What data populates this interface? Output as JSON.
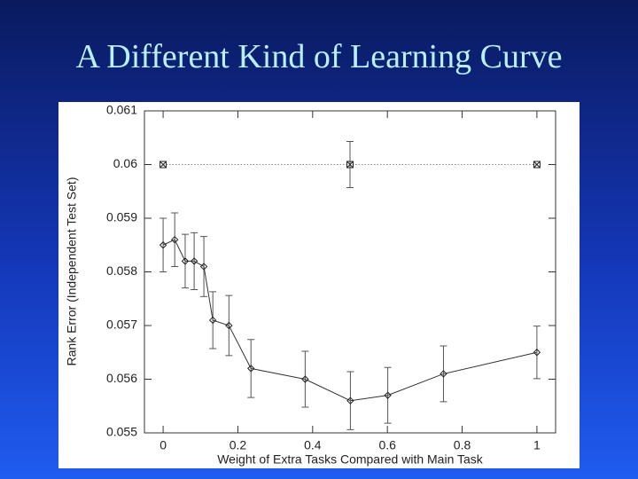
{
  "slide_title": "A Different Kind of Learning Curve",
  "chart_data": {
    "type": "line",
    "xlabel": "Weight of Extra Tasks Compared with Main Task",
    "ylabel": "Rank Error (Independent Test Set)",
    "xlim": [
      -0.05,
      1.05
    ],
    "xticks": [
      0,
      0.2,
      0.4,
      0.6,
      0.8,
      1
    ],
    "ylim": [
      0.055,
      0.061
    ],
    "yticks": [
      0.055,
      0.056,
      0.057,
      0.058,
      0.059,
      0.06,
      0.061
    ],
    "grid": false,
    "series": [
      {
        "color": "#888888",
        "linestyle": "dotted",
        "marker": "boxx",
        "x": [
          0,
          0.5,
          1
        ],
        "values": [
          0.06,
          0.06,
          0.06
        ],
        "errors": [
          null,
          0.00043,
          null
        ]
      },
      {
        "color": "#333333",
        "linestyle": "solid",
        "marker": "diamond",
        "x": [
          0,
          0.031,
          0.059,
          0.083,
          0.109,
          0.133,
          0.176,
          0.235,
          0.38,
          0.501,
          0.601,
          0.75,
          1
        ],
        "values": [
          0.0585,
          0.0586,
          0.0582,
          0.0582,
          0.0581,
          0.0571,
          0.057,
          0.0562,
          0.056,
          0.0556,
          0.0557,
          0.0561,
          0.0565
        ],
        "errors": [
          0.0005,
          0.0005,
          0.0005,
          0.00053,
          0.00056,
          0.00053,
          0.00056,
          0.00054,
          0.00052,
          0.00054,
          0.00052,
          0.00052,
          0.00049
        ]
      }
    ]
  }
}
